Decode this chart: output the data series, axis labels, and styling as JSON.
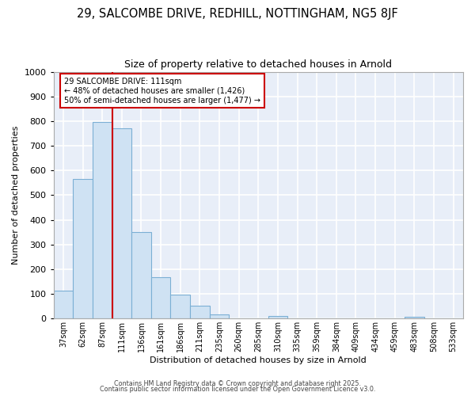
{
  "title_line1": "29, SALCOMBE DRIVE, REDHILL, NOTTINGHAM, NG5 8JF",
  "title_line2": "Size of property relative to detached houses in Arnold",
  "xlabel": "Distribution of detached houses by size in Arnold",
  "ylabel": "Number of detached properties",
  "categories": [
    "37sqm",
    "62sqm",
    "87sqm",
    "111sqm",
    "136sqm",
    "161sqm",
    "186sqm",
    "211sqm",
    "235sqm",
    "260sqm",
    "285sqm",
    "310sqm",
    "335sqm",
    "359sqm",
    "384sqm",
    "409sqm",
    "434sqm",
    "459sqm",
    "483sqm",
    "508sqm",
    "533sqm"
  ],
  "values": [
    113,
    565,
    795,
    770,
    350,
    167,
    97,
    53,
    18,
    0,
    0,
    12,
    0,
    0,
    0,
    0,
    0,
    0,
    7,
    0,
    0
  ],
  "bar_color_fill": "#cfe2f3",
  "bar_color_edge": "#7bafd4",
  "red_line_x": 2.5,
  "annotation_line1": "29 SALCOMBE DRIVE: 111sqm",
  "annotation_line2": "← 48% of detached houses are smaller (1,426)",
  "annotation_line3": "50% of semi-detached houses are larger (1,477) →",
  "annotation_box_color": "#ffffff",
  "annotation_box_edgecolor": "#cc0000",
  "ylim": [
    0,
    1000
  ],
  "yticks": [
    0,
    100,
    200,
    300,
    400,
    500,
    600,
    700,
    800,
    900,
    1000
  ],
  "figure_background": "#ffffff",
  "axes_background": "#e8eef8",
  "grid_color": "#ffffff",
  "footer_line1": "Contains HM Land Registry data © Crown copyright and database right 2025.",
  "footer_line2": "Contains public sector information licensed under the Open Government Licence v3.0."
}
